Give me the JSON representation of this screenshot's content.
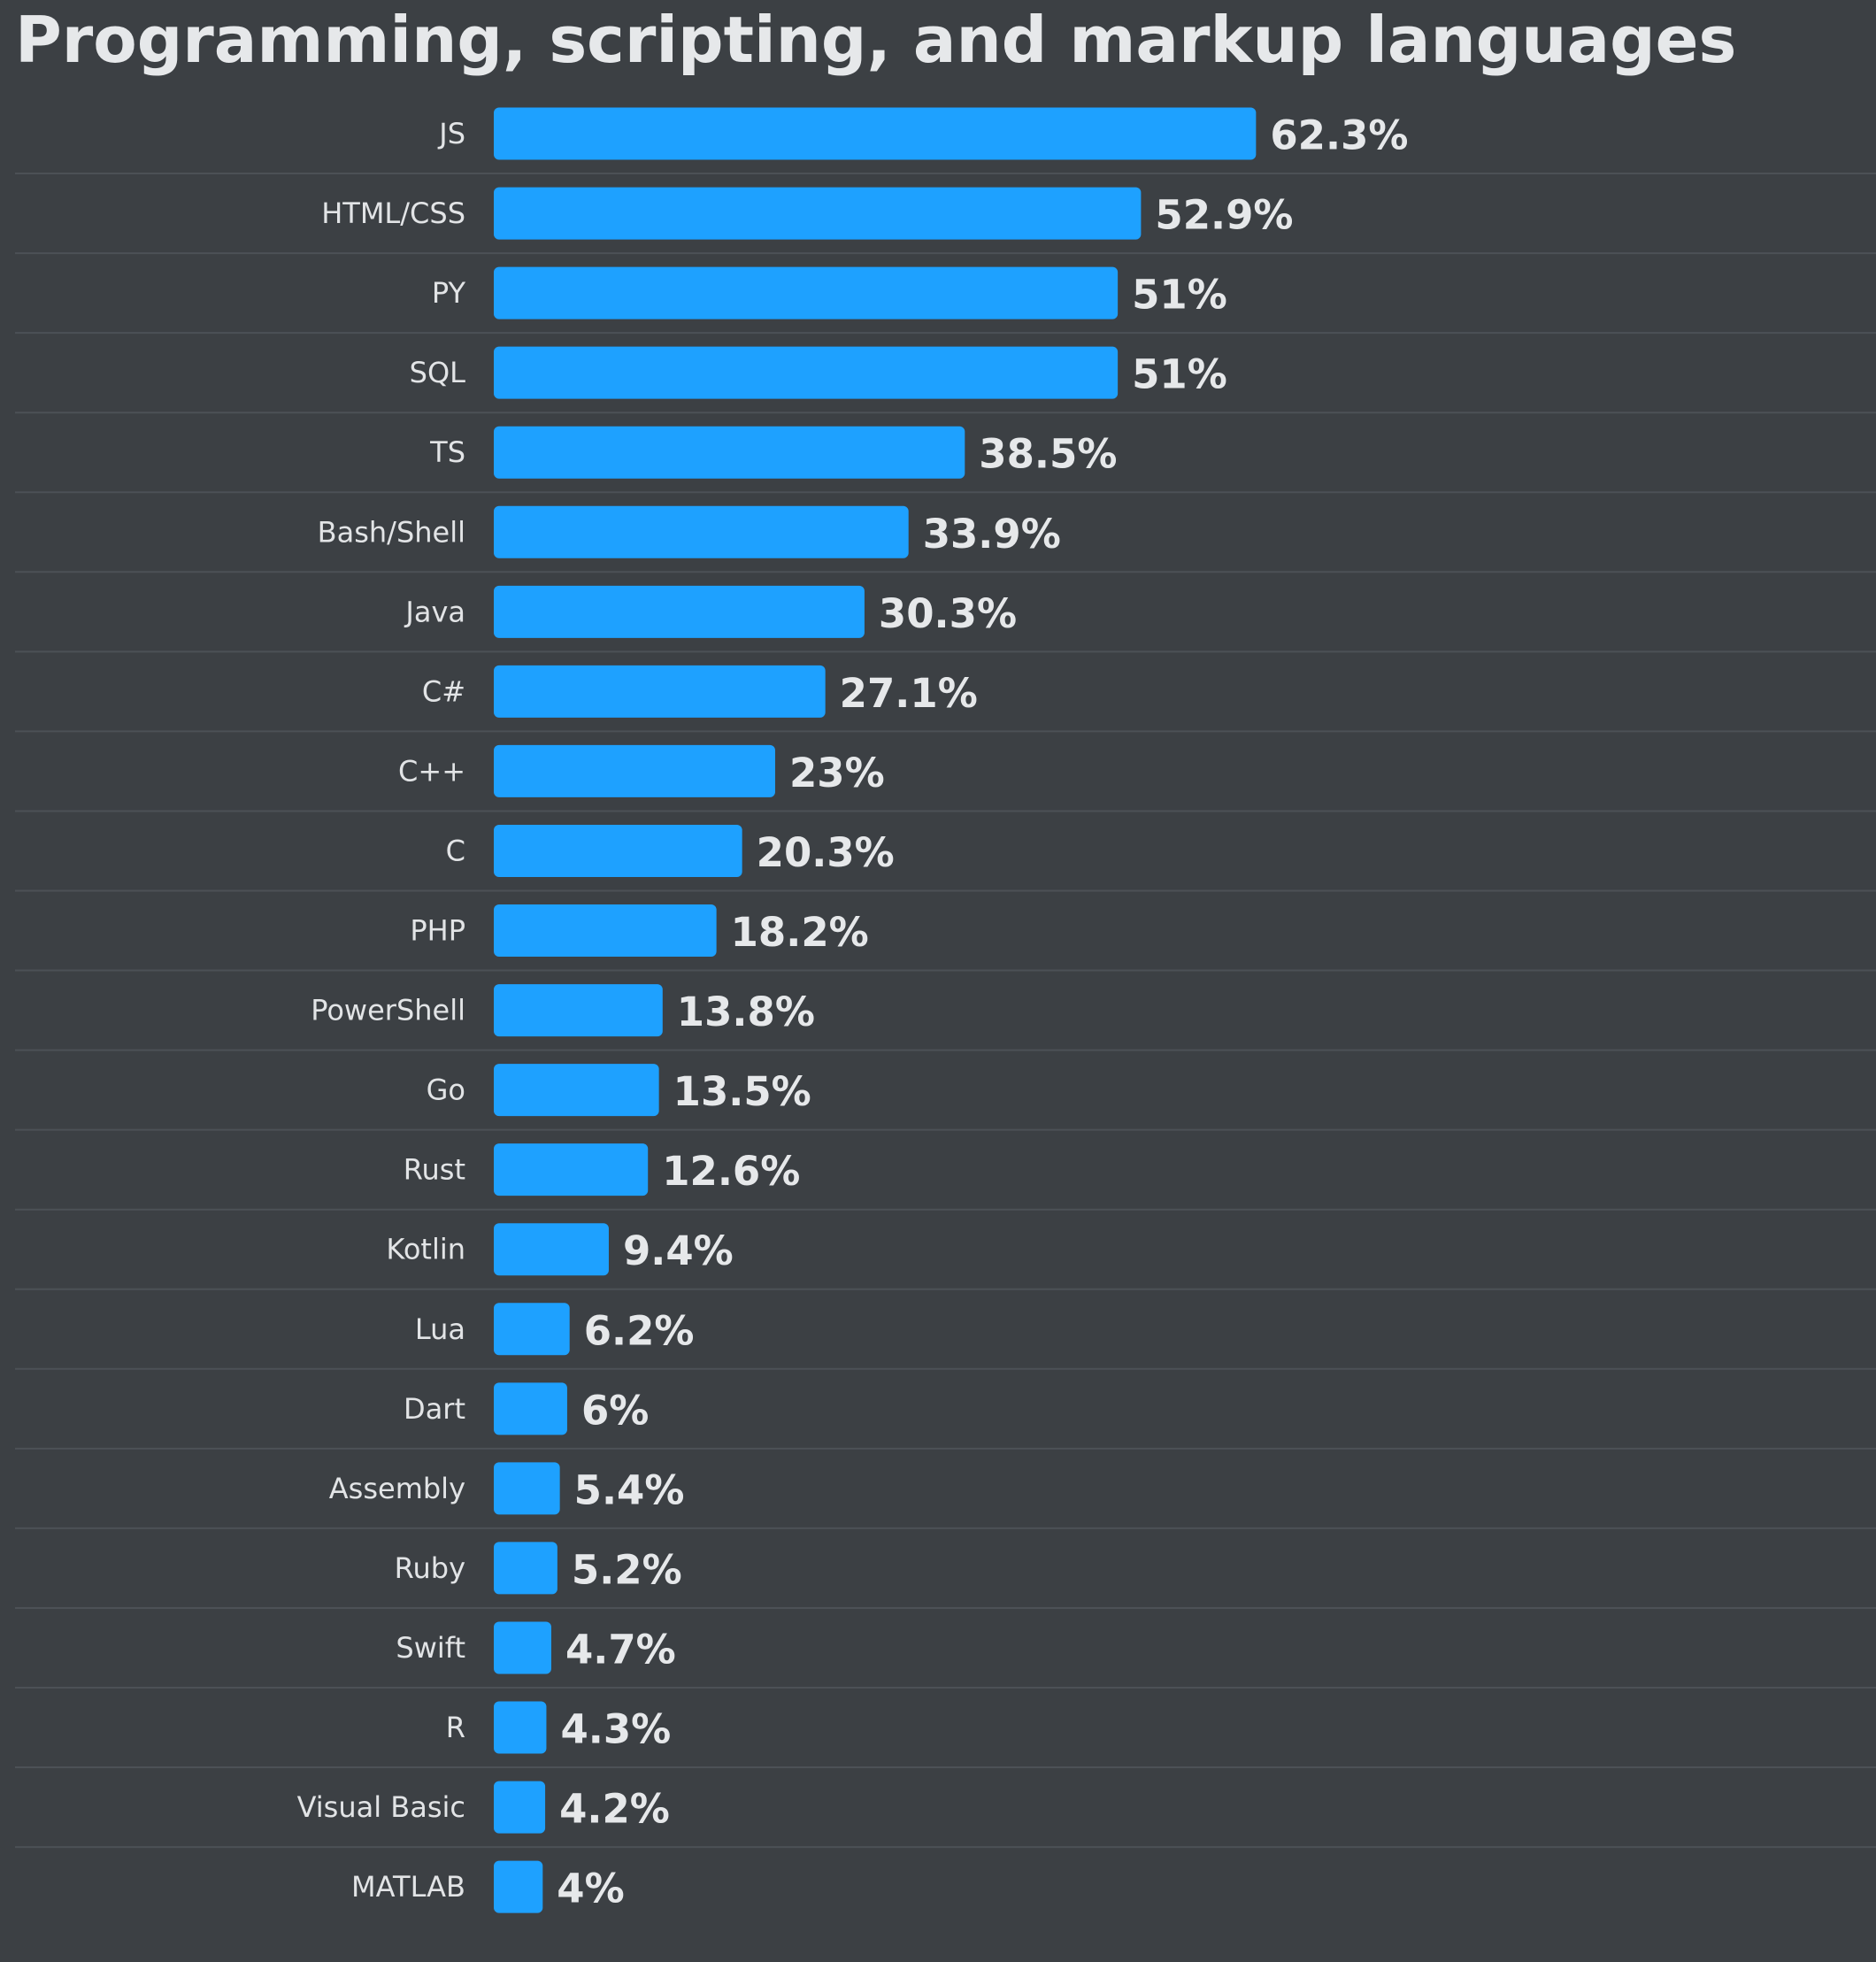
{
  "chart_data": {
    "type": "bar",
    "orientation": "horizontal",
    "title": "Programming, scripting, and markup languages",
    "categories": [
      "JS",
      "HTML/CSS",
      "PY",
      "SQL",
      "TS",
      "Bash/Shell",
      "Java",
      "C#",
      "C++",
      "C",
      "PHP",
      "PowerShell",
      "Go",
      "Rust",
      "Kotlin",
      "Lua",
      "Dart",
      "Assembly",
      "Ruby",
      "Swift",
      "R",
      "Visual Basic",
      "MATLAB"
    ],
    "values": [
      62.3,
      52.9,
      51,
      51,
      38.5,
      33.9,
      30.3,
      27.1,
      23,
      20.3,
      18.2,
      13.8,
      13.5,
      12.6,
      9.4,
      6.2,
      6,
      5.4,
      5.2,
      4.7,
      4.3,
      4.2,
      4
    ],
    "value_labels": [
      "62.3%",
      "52.9%",
      "51%",
      "51%",
      "38.5%",
      "33.9%",
      "30.3%",
      "27.1%",
      "23%",
      "20.3%",
      "18.2%",
      "13.8%",
      "13.5%",
      "12.6%",
      "9.4%",
      "6.2%",
      "6%",
      "5.4%",
      "5.2%",
      "4.7%",
      "4.3%",
      "4.2%",
      "4%"
    ],
    "unit": "%",
    "xlabel": "",
    "ylabel": "",
    "grid": false,
    "legend": "none",
    "colors": {
      "bar": "#1ea1ff",
      "background": "#3c4044",
      "separator": "#4c5156",
      "text": "#e6e8ea"
    }
  }
}
